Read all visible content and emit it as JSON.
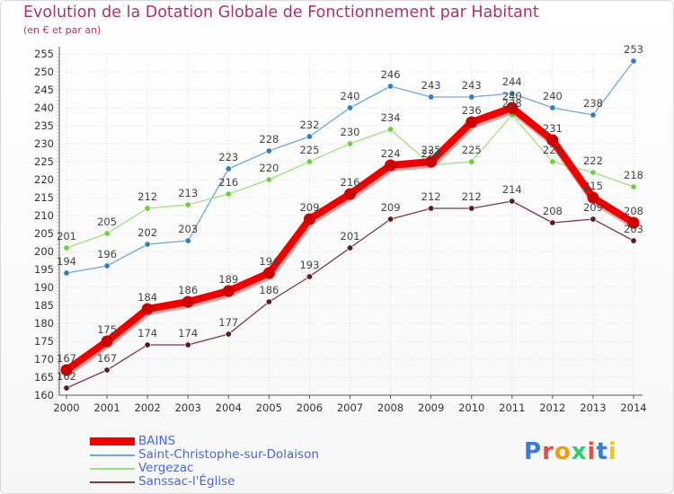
{
  "title": "Evolution de la Dotation Globale de Fonctionnement par Habitant",
  "subtitle": "(en € et par an)",
  "logo": {
    "text": "Proxiti",
    "colors": [
      "#3a7bd5",
      "#e84c3d",
      "#f39c12",
      "#2ecc71",
      "#e84c3d",
      "#3a7bd5",
      "#f1c40f"
    ]
  },
  "chart_data": {
    "type": "line",
    "title": "Evolution de la Dotation Globale de Fonctionnement par Habitant",
    "subtitle": "(en € et par an)",
    "xlabel": "",
    "ylabel": "",
    "ylim": [
      160,
      255
    ],
    "yticks": [
      160,
      165,
      170,
      175,
      180,
      185,
      190,
      195,
      200,
      205,
      210,
      215,
      220,
      225,
      230,
      235,
      240,
      245,
      250,
      255
    ],
    "grid": true,
    "legend_position": "bottom-left",
    "x": [
      "2000",
      "2001",
      "2002",
      "2003",
      "2004",
      "2005",
      "2006",
      "2007",
      "2008",
      "2009",
      "2010",
      "2011",
      "2012",
      "2013",
      "2014"
    ],
    "series": [
      {
        "name": "Saint-Christophe-sur-Dolaison",
        "color": "#6fa8d6",
        "marker": "#2f7fc4",
        "width": "thin",
        "values": [
          194,
          196,
          202,
          203,
          223,
          228,
          232,
          240,
          246,
          243,
          243,
          244,
          240,
          238,
          253
        ]
      },
      {
        "name": "Vergezac",
        "color": "#9ee07d",
        "marker": "#6ccf3c",
        "width": "thin",
        "values": [
          201,
          205,
          212,
          213,
          216,
          220,
          225,
          230,
          234,
          224,
          225,
          238,
          225,
          222,
          218
        ]
      },
      {
        "name": "Sanssac-l'Église",
        "color": "#7a3a3f",
        "marker": "#5a1a20",
        "width": "thin",
        "values": [
          162,
          167,
          174,
          174,
          177,
          186,
          193,
          201,
          209,
          212,
          212,
          214,
          208,
          209,
          203
        ]
      },
      {
        "name": "BAINS",
        "color": "#ee0000",
        "marker": "#cc0000",
        "width": "thick",
        "values": [
          167,
          175,
          184,
          186,
          189,
          194,
          209,
          216,
          224,
          225,
          236,
          240,
          231,
          215,
          208
        ]
      }
    ],
    "legend_order": [
      "BAINS",
      "Saint-Christophe-sur-Dolaison",
      "Vergezac",
      "Sanssac-l'Église"
    ]
  }
}
